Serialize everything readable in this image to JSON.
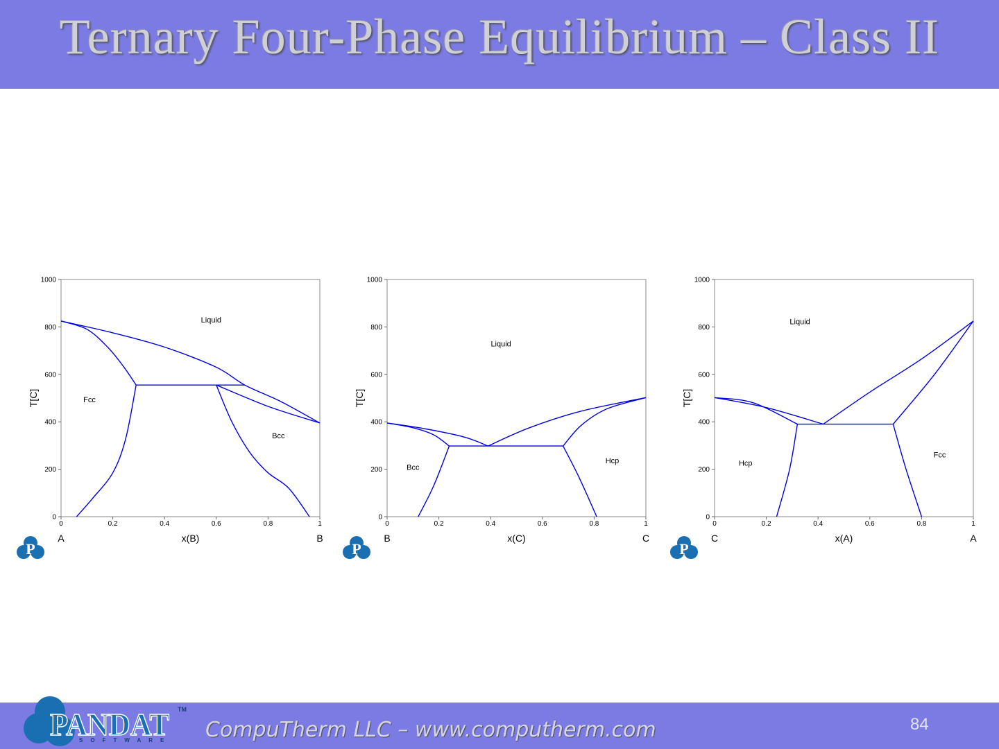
{
  "slide": {
    "title": "Ternary Four-Phase Equilibrium – Class II",
    "tagline": "CompuTherm LLC – www.computherm.com",
    "page_number": "84",
    "logo_text": "PANDAT",
    "logo_subtext": "SOFTWARE",
    "logo_tm": "TM",
    "small_logo_letter": "P",
    "colors": {
      "band": "#7b7be3",
      "line": "#0000dd",
      "logo": "#1a6fb3"
    }
  },
  "chart_data": [
    {
      "type": "line",
      "xlabel": "x(B)",
      "ylabel": "T[C]",
      "left_end": "A",
      "right_end": "B",
      "xlim": [
        0,
        1
      ],
      "ylim": [
        0,
        1000
      ],
      "xticks": [
        "0",
        "0.2",
        "0.4",
        "0.6",
        "0.8",
        "1"
      ],
      "yticks": [
        "0",
        "200",
        "400",
        "600",
        "800",
        "1000"
      ],
      "region_labels": [
        {
          "text": "Liquid",
          "x": 0.58,
          "y": 818
        },
        {
          "text": "Fcc",
          "x": 0.11,
          "y": 482
        },
        {
          "text": "Bcc",
          "x": 0.84,
          "y": 330
        }
      ],
      "series": [
        {
          "points": [
            [
              0,
              825
            ],
            [
              0.2,
              775
            ],
            [
              0.4,
              715
            ],
            [
              0.6,
              630
            ],
            [
              0.71,
              555
            ],
            [
              0.85,
              485
            ],
            [
              1,
              395
            ]
          ]
        },
        {
          "points": [
            [
              0,
              825
            ],
            [
              0.1,
              790
            ],
            [
              0.18,
              715
            ],
            [
              0.24,
              635
            ],
            [
              0.29,
              555
            ]
          ]
        },
        {
          "points": [
            [
              0.29,
              555
            ],
            [
              0.71,
              555
            ]
          ]
        },
        {
          "points": [
            [
              0.6,
              555
            ],
            [
              0.8,
              465
            ],
            [
              1,
              395
            ]
          ]
        },
        {
          "points": [
            [
              0.06,
              0
            ],
            [
              0.12,
              75
            ],
            [
              0.2,
              185
            ],
            [
              0.25,
              330
            ],
            [
              0.29,
              555
            ]
          ]
        },
        {
          "points": [
            [
              0.6,
              555
            ],
            [
              0.66,
              400
            ],
            [
              0.73,
              270
            ],
            [
              0.8,
              185
            ],
            [
              0.88,
              120
            ],
            [
              0.96,
              0
            ]
          ]
        }
      ]
    },
    {
      "type": "line",
      "xlabel": "x(C)",
      "ylabel": "T[C]",
      "left_end": "B",
      "right_end": "C",
      "xlim": [
        0,
        1
      ],
      "ylim": [
        0,
        1000
      ],
      "xticks": [
        "0",
        "0.2",
        "0.4",
        "0.6",
        "0.8",
        "1"
      ],
      "yticks": [
        "0",
        "200",
        "400",
        "600",
        "800",
        "1000"
      ],
      "region_labels": [
        {
          "text": "Liquid",
          "x": 0.44,
          "y": 718
        },
        {
          "text": "Bcc",
          "x": 0.1,
          "y": 198
        },
        {
          "text": "Hcp",
          "x": 0.87,
          "y": 225
        }
      ],
      "series": [
        {
          "points": [
            [
              0,
              395
            ],
            [
              0.15,
              370
            ],
            [
              0.3,
              335
            ],
            [
              0.39,
              298
            ]
          ]
        },
        {
          "points": [
            [
              0,
              395
            ],
            [
              0.1,
              375
            ],
            [
              0.18,
              345
            ],
            [
              0.24,
              298
            ]
          ]
        },
        {
          "points": [
            [
              0.24,
              298
            ],
            [
              0.68,
              298
            ]
          ]
        },
        {
          "points": [
            [
              0.39,
              298
            ],
            [
              0.55,
              375
            ],
            [
              0.75,
              445
            ],
            [
              1,
              502
            ]
          ]
        },
        {
          "points": [
            [
              0.68,
              298
            ],
            [
              0.75,
              385
            ],
            [
              0.85,
              455
            ],
            [
              1,
              502
            ]
          ]
        },
        {
          "points": [
            [
              0.12,
              0
            ],
            [
              0.18,
              130
            ],
            [
              0.24,
              298
            ]
          ]
        },
        {
          "points": [
            [
              0.68,
              298
            ],
            [
              0.74,
              170
            ],
            [
              0.81,
              0
            ]
          ]
        }
      ]
    },
    {
      "type": "line",
      "xlabel": "x(A)",
      "ylabel": "T[C]",
      "left_end": "C",
      "right_end": "A",
      "xlim": [
        0,
        1
      ],
      "ylim": [
        0,
        1000
      ],
      "xticks": [
        "0",
        "0.2",
        "0.4",
        "0.6",
        "0.8",
        "1"
      ],
      "yticks": [
        "0",
        "200",
        "400",
        "600",
        "800",
        "1000"
      ],
      "region_labels": [
        {
          "text": "Liquid",
          "x": 0.33,
          "y": 812
        },
        {
          "text": "Hcp",
          "x": 0.12,
          "y": 215
        },
        {
          "text": "Fcc",
          "x": 0.87,
          "y": 250
        }
      ],
      "series": [
        {
          "points": [
            [
              0,
              502
            ],
            [
              0.2,
              460
            ],
            [
              0.42,
              390
            ]
          ]
        },
        {
          "points": [
            [
              0,
              502
            ],
            [
              0.15,
              480
            ],
            [
              0.32,
              390
            ]
          ]
        },
        {
          "points": [
            [
              0.32,
              390
            ],
            [
              0.69,
              390
            ]
          ]
        },
        {
          "points": [
            [
              0.42,
              390
            ],
            [
              0.6,
              525
            ],
            [
              0.8,
              665
            ],
            [
              1,
              825
            ]
          ]
        },
        {
          "points": [
            [
              0.69,
              390
            ],
            [
              0.85,
              600
            ],
            [
              1,
              825
            ]
          ]
        },
        {
          "points": [
            [
              0.24,
              0
            ],
            [
              0.29,
              200
            ],
            [
              0.32,
              390
            ]
          ]
        },
        {
          "points": [
            [
              0.69,
              390
            ],
            [
              0.74,
              200
            ],
            [
              0.8,
              0
            ]
          ]
        }
      ]
    }
  ]
}
